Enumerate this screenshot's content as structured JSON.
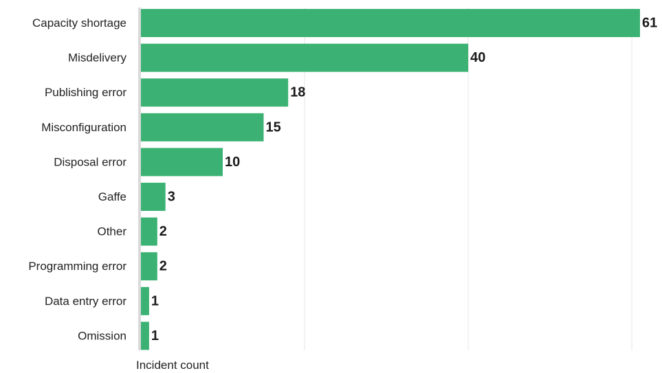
{
  "chart_data": {
    "type": "bar",
    "orientation": "horizontal",
    "categories": [
      "Capacity shortage",
      "Misdelivery",
      "Publishing error",
      "Misconfiguration",
      "Disposal error",
      "Gaffe",
      "Other",
      "Programming error",
      "Data entry error",
      "Omission"
    ],
    "values": [
      61,
      40,
      18,
      15,
      10,
      3,
      2,
      2,
      1,
      1
    ],
    "xlabel": "Incident count",
    "ylabel": "",
    "xlim": [
      0,
      61
    ],
    "grid": true,
    "data_labels": true,
    "bar_color": "#3bb273",
    "axis_color": "#d9d9d9",
    "grid_color": "#e6e6e6"
  }
}
